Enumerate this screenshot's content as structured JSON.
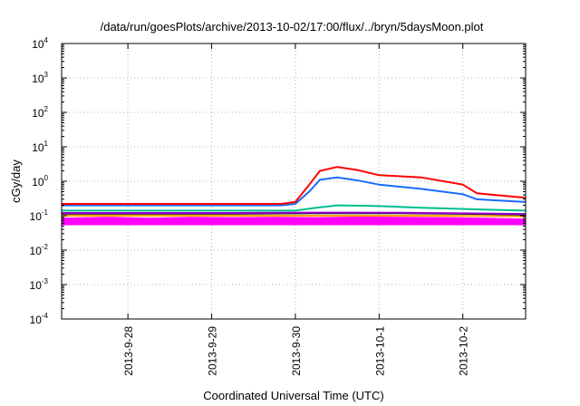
{
  "chart_data": {
    "type": "line",
    "title": "/data/run/goesPlots/archive/2013-10-02/17:00/flux/../bryn/5daysMoon.plot",
    "xlabel": "Coordinated Universal Time (UTC)",
    "ylabel": "cGy/day",
    "y_scale": "log",
    "ylim": [
      0.0001,
      10000
    ],
    "y_ticks": [
      {
        "base": "10",
        "exp": "-4",
        "value": 0.0001
      },
      {
        "base": "10",
        "exp": "-3",
        "value": 0.001
      },
      {
        "base": "10",
        "exp": "-2",
        "value": 0.01
      },
      {
        "base": "10",
        "exp": "-1",
        "value": 0.1
      },
      {
        "base": "10",
        "exp": "0",
        "value": 1
      },
      {
        "base": "10",
        "exp": "1",
        "value": 10
      },
      {
        "base": "10",
        "exp": "2",
        "value": 100
      },
      {
        "base": "10",
        "exp": "3",
        "value": 1000
      },
      {
        "base": "10",
        "exp": "4",
        "value": 10000
      }
    ],
    "xlim": [
      "2013-09-27 05:00",
      "2013-10-02 18:00"
    ],
    "x_ticks": [
      "2013-9-28",
      "2013-9-29",
      "2013-9-30",
      "2013-10-1",
      "2013-10-2"
    ],
    "x_tick_values": [
      "2013-09-28",
      "2013-09-29",
      "2013-09-30",
      "2013-10-01",
      "2013-10-02"
    ],
    "grid": true,
    "series": [
      {
        "color": "#ff00ff",
        "fill": true,
        "x": [
          "2013-09-27 05:00",
          "2013-09-27 18:00",
          "2013-09-28 06:00",
          "2013-09-28 18:00",
          "2013-09-29 06:00",
          "2013-09-29 18:00",
          "2013-09-30 06:00",
          "2013-09-30 18:00",
          "2013-10-01 06:00",
          "2013-10-01 18:00",
          "2013-10-02 06:00",
          "2013-10-02 18:00"
        ],
        "values": [
          0.085,
          0.09,
          0.085,
          0.09,
          0.088,
          0.09,
          0.088,
          0.092,
          0.09,
          0.088,
          0.085,
          0.08
        ]
      },
      {
        "color": "#ffa500",
        "x": [
          "2013-09-27 05:00",
          "2013-09-28 06:00",
          "2013-09-29 06:00",
          "2013-09-30 06:00",
          "2013-10-01 06:00",
          "2013-10-02 06:00",
          "2013-10-02 18:00"
        ],
        "values": [
          0.1,
          0.1,
          0.1,
          0.1,
          0.1,
          0.098,
          0.095
        ]
      },
      {
        "color": "#000000",
        "x": [
          "2013-09-27 05:00",
          "2013-09-28 06:00",
          "2013-09-29 06:00",
          "2013-09-30 06:00",
          "2013-10-01 06:00",
          "2013-10-02 06:00",
          "2013-10-02 18:00"
        ],
        "values": [
          0.115,
          0.115,
          0.115,
          0.118,
          0.118,
          0.112,
          0.108
        ]
      },
      {
        "color": "#9400d3",
        "x": [
          "2013-09-27 05:00",
          "2013-09-28 06:00",
          "2013-09-29 06:00",
          "2013-09-30 06:00",
          "2013-10-01 06:00",
          "2013-10-02 06:00",
          "2013-10-02 18:00"
        ],
        "values": [
          0.12,
          0.12,
          0.12,
          0.123,
          0.122,
          0.116,
          0.112
        ]
      },
      {
        "color": "#00c08c",
        "x": [
          "2013-09-27 05:00",
          "2013-09-28 06:00",
          "2013-09-29 06:00",
          "2013-09-30 00:00",
          "2013-09-30 06:00",
          "2013-09-30 12:00",
          "2013-10-01 00:00",
          "2013-10-01 12:00",
          "2013-10-02 06:00",
          "2013-10-02 18:00"
        ],
        "values": [
          0.14,
          0.14,
          0.14,
          0.14,
          0.17,
          0.2,
          0.19,
          0.17,
          0.15,
          0.14
        ]
      },
      {
        "color": "#1a6cff",
        "x": [
          "2013-09-27 05:00",
          "2013-09-28 06:00",
          "2013-09-29 06:00",
          "2013-09-29 20:00",
          "2013-09-30 00:00",
          "2013-09-30 04:00",
          "2013-09-30 07:00",
          "2013-09-30 12:00",
          "2013-09-30 18:00",
          "2013-10-01 00:00",
          "2013-10-01 12:00",
          "2013-10-02 00:00",
          "2013-10-02 04:00",
          "2013-10-02 18:00"
        ],
        "values": [
          0.2,
          0.2,
          0.2,
          0.2,
          0.22,
          0.5,
          1.1,
          1.3,
          1.05,
          0.8,
          0.6,
          0.42,
          0.3,
          0.25
        ]
      },
      {
        "color": "#ff0000",
        "x": [
          "2013-09-27 05:00",
          "2013-09-28 06:00",
          "2013-09-29 06:00",
          "2013-09-29 20:00",
          "2013-09-30 00:00",
          "2013-09-30 04:00",
          "2013-09-30 07:00",
          "2013-09-30 12:00",
          "2013-09-30 18:00",
          "2013-10-01 00:00",
          "2013-10-01 12:00",
          "2013-10-02 00:00",
          "2013-10-02 04:00",
          "2013-10-02 18:00"
        ],
        "values": [
          0.22,
          0.22,
          0.22,
          0.22,
          0.25,
          0.8,
          2.0,
          2.6,
          2.1,
          1.5,
          1.3,
          0.8,
          0.45,
          0.33
        ]
      }
    ]
  }
}
